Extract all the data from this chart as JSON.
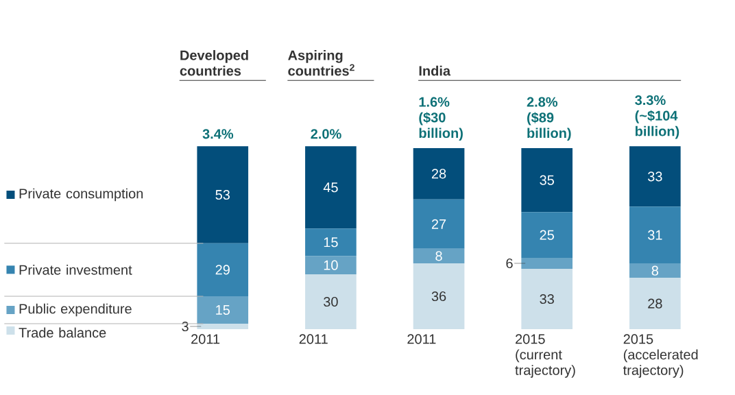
{
  "chart_data": {
    "type": "bar",
    "stacked": true,
    "categories": [
      "2011",
      "2011",
      "2011",
      "2015 (current trajectory)",
      "2015 (accelerated trajectory)"
    ],
    "series": [
      {
        "name": "Trade balance",
        "color": "#cde0ea",
        "values": [
          3,
          30,
          36,
          33,
          28
        ]
      },
      {
        "name": "Public expenditure",
        "color": "#66a3c5",
        "values": [
          15,
          10,
          8,
          6,
          8
        ]
      },
      {
        "name": "Private investment",
        "color": "#3584b0",
        "values": [
          29,
          15,
          27,
          25,
          31
        ]
      },
      {
        "name": "Private consumption",
        "color": "#034e7b",
        "values": [
          53,
          45,
          28,
          35,
          33
        ]
      }
    ],
    "ylim": [
      0,
      100
    ],
    "data_labels": true,
    "annotations": [
      "Developed countries",
      "Aspiring countries$^{2}$",
      "India",
      "3.4%",
      "2.0%",
      "1.6% ($30 billion)",
      "2.8% ($89 billion)",
      "3.3% (~$104 billion)"
    ],
    "legend": "left",
    "tick_labels": "x"
  }
}
